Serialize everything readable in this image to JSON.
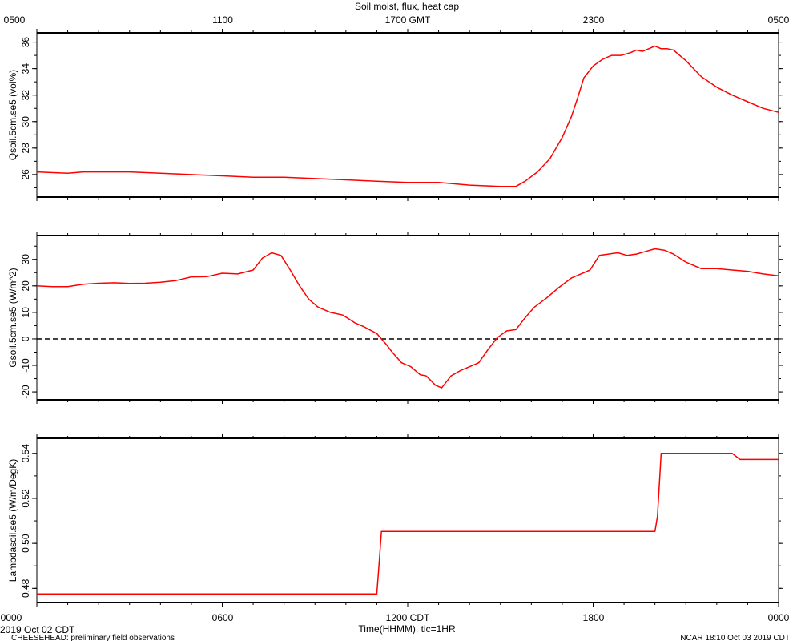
{
  "header": {
    "title": "Soil moist, flux, heat cap",
    "top_ticks": [
      "0500",
      "1100",
      "1700 GMT",
      "2300",
      "0500"
    ]
  },
  "footer": {
    "date_label": "2019 Oct 02 CDT",
    "project_label": "CHEESEHEAD: preliminary field observations",
    "xlabel": "Time(HHMM), tic=1HR",
    "bottom_ticks": [
      "0000",
      "0600",
      "1200 CDT",
      "1800",
      "0000"
    ],
    "credit": "NCAR 18:10 Oct 03 2019 CDT"
  },
  "colors": {
    "series": "#ff0000",
    "axis": "#000000",
    "zero_line": "#000000"
  },
  "chart_data": [
    {
      "type": "line",
      "title": "",
      "xlabel": "",
      "ylabel": "Qsoil.5cm.se5 (vol%)",
      "xlim": [
        0,
        24
      ],
      "ylim": [
        24.3,
        36.7
      ],
      "yticks": [
        26,
        28,
        30,
        32,
        34,
        36
      ],
      "grid": false,
      "x": [
        0,
        1,
        1.5,
        2,
        3,
        4,
        5,
        6,
        7,
        8,
        9,
        10,
        11,
        12,
        13,
        14,
        15,
        15.5,
        15.8,
        16.2,
        16.6,
        17,
        17.3,
        17.5,
        17.7,
        18.0,
        18.3,
        18.6,
        18.9,
        19.2,
        19.4,
        19.6,
        19.8,
        20.0,
        20.2,
        20.4,
        20.6,
        20.8,
        21.0,
        21.5,
        22,
        22.5,
        23,
        23.5,
        24
      ],
      "series": [
        {
          "values": [
            26.2,
            26.1,
            26.2,
            26.2,
            26.2,
            26.1,
            26.0,
            25.9,
            25.8,
            25.8,
            25.7,
            25.6,
            25.5,
            25.4,
            25.4,
            25.2,
            25.1,
            25.1,
            25.5,
            26.2,
            27.2,
            28.8,
            30.4,
            31.8,
            33.3,
            34.2,
            34.7,
            35.0,
            35.0,
            35.2,
            35.4,
            35.3,
            35.5,
            35.7,
            35.5,
            35.5,
            35.4,
            35.0,
            34.6,
            33.4,
            32.6,
            32.0,
            31.5,
            31.0,
            30.7
          ]
        }
      ]
    },
    {
      "type": "line",
      "title": "",
      "xlabel": "",
      "ylabel": "Gsoil.5cm.se5 (W/m^2)",
      "xlim": [
        0,
        24
      ],
      "ylim": [
        -23,
        39
      ],
      "yticks": [
        -20,
        -10,
        0,
        10,
        20,
        30
      ],
      "zero_line": 0,
      "grid": false,
      "x": [
        0,
        0.5,
        1,
        1.5,
        2,
        2.5,
        3,
        3.5,
        4,
        4.5,
        5,
        5.5,
        6,
        6.5,
        7,
        7.3,
        7.6,
        7.9,
        8.2,
        8.5,
        8.8,
        9.1,
        9.5,
        9.9,
        10.3,
        10.6,
        11,
        11.3,
        11.5,
        11.8,
        12.1,
        12.4,
        12.6,
        12.9,
        13.1,
        13.4,
        13.7,
        14.0,
        14.3,
        14.6,
        14.9,
        15.2,
        15.5,
        15.8,
        16.1,
        16.5,
        16.9,
        17.3,
        17.6,
        17.9,
        18.2,
        18.5,
        18.8,
        19.1,
        19.4,
        19.7,
        20.0,
        20.3,
        20.6,
        21.0,
        21.5,
        22,
        22.5,
        23,
        23.5,
        24
      ],
      "series": [
        {
          "values": [
            20,
            19.7,
            19.7,
            20.6,
            21.0,
            21.2,
            20.9,
            21.0,
            21.4,
            22.0,
            23.4,
            23.5,
            24.8,
            24.5,
            26.0,
            30.5,
            32.5,
            31.5,
            26.0,
            20.0,
            15.0,
            12.0,
            10.0,
            9.0,
            6.0,
            4.5,
            2.0,
            -2.0,
            -5.0,
            -9.0,
            -10.5,
            -13.5,
            -14.0,
            -17.5,
            -18.5,
            -14.0,
            -12.0,
            -10.5,
            -9.0,
            -4.0,
            0.5,
            3.0,
            3.5,
            8.0,
            12.0,
            15.5,
            19.5,
            23.0,
            24.5,
            26.0,
            31.5,
            32.0,
            32.5,
            31.5,
            32.0,
            33.0,
            34.0,
            33.5,
            32.0,
            29.0,
            26.5,
            26.5,
            26.0,
            25.5,
            24.5,
            23.8
          ]
        }
      ]
    },
    {
      "type": "line",
      "title": "",
      "xlabel": "",
      "ylabel": "Lambdasoil.se5 (W/m/DegK)",
      "xlim": [
        0,
        24
      ],
      "ylim": [
        0.4737,
        0.5467
      ],
      "yticks": [
        0.48,
        0.5,
        0.52,
        0.54
      ],
      "grid": false,
      "x": [
        0,
        11.0,
        11.07,
        11.15,
        20.0,
        20.08,
        20.2,
        22.5,
        22.75,
        24
      ],
      "series": [
        {
          "values": [
            0.4775,
            0.4775,
            0.49,
            0.5053,
            0.5053,
            0.512,
            0.54,
            0.54,
            0.5373,
            0.5373
          ]
        }
      ]
    }
  ]
}
